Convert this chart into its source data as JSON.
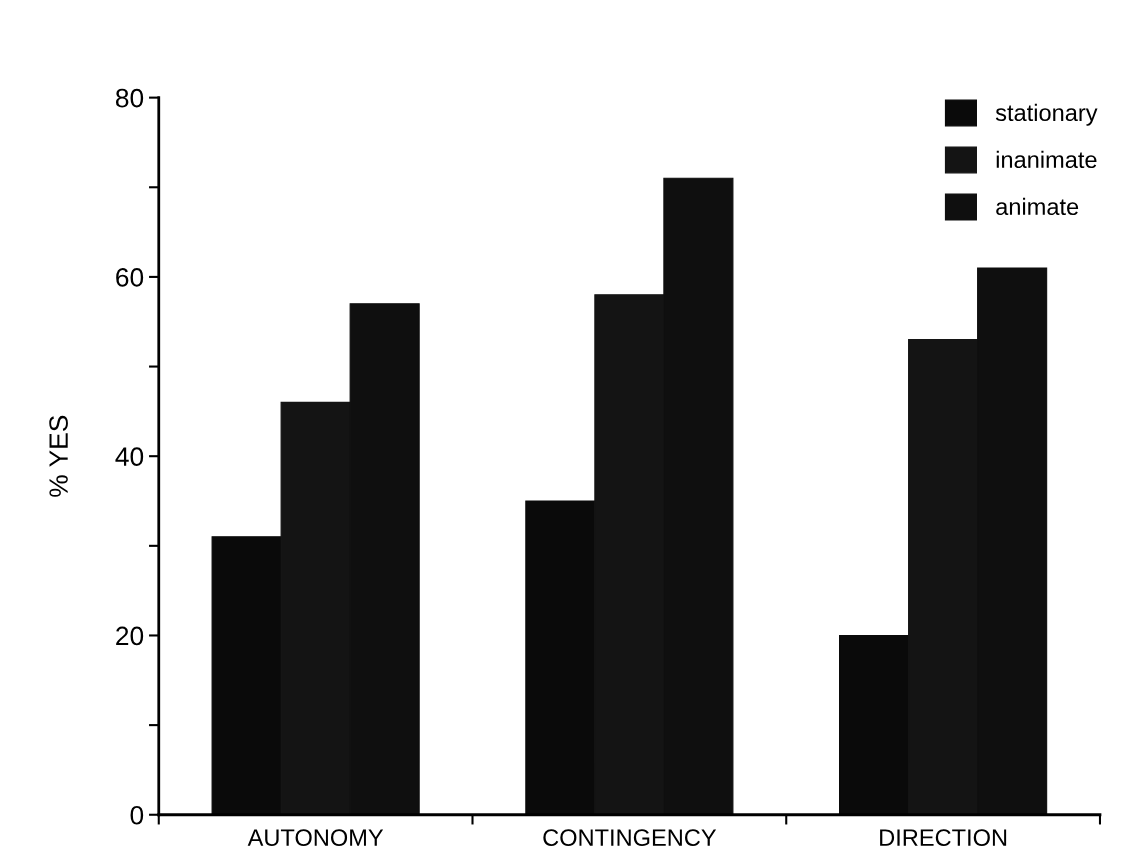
{
  "chart_data": {
    "type": "bar",
    "ylabel": "% YES",
    "categories": [
      "AUTONOMY",
      "CONTINGENCY",
      "DIRECTION"
    ],
    "series": [
      {
        "name": "stationary",
        "color": "#0a0a0a",
        "values": [
          31,
          35,
          20
        ]
      },
      {
        "name": "inanimate",
        "color": "#141414",
        "values": [
          46,
          58,
          53
        ]
      },
      {
        "name": "animate",
        "color": "#0f0f0f",
        "values": [
          57,
          71,
          61
        ]
      }
    ],
    "ylim": [
      0,
      80
    ],
    "yticks": [
      0,
      {
        "value": 10,
        "label": null
      },
      20,
      {
        "value": 30,
        "label": null
      },
      40,
      {
        "value": 50,
        "label": null
      },
      60,
      {
        "value": 70,
        "label": null
      },
      80
    ],
    "grid": false,
    "legend": "top right"
  }
}
